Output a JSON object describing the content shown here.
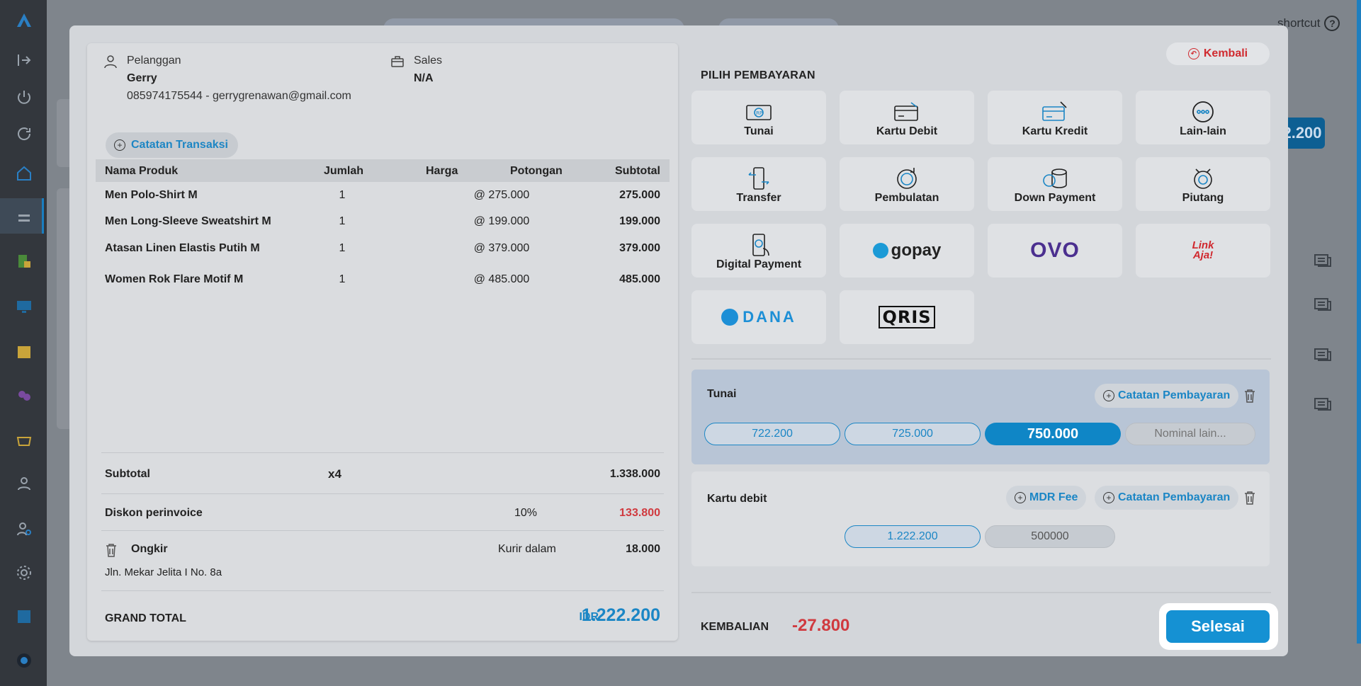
{
  "background": {
    "shortcut_label": "shortcut",
    "total_peek": "2.200"
  },
  "customer": {
    "label": "Pelanggan",
    "name": "Gerry",
    "contact": "085974175544 - gerrygrenawan@gmail.com"
  },
  "sales": {
    "label": "Sales",
    "value": "N/A"
  },
  "catatan_transaksi_label": "Catatan Transaksi",
  "table": {
    "headers": [
      "Nama Produk",
      "Jumlah",
      "Harga",
      "Potongan",
      "Subtotal"
    ],
    "rows": [
      {
        "name": "Men Polo-Shirt M",
        "qty": "1",
        "price": "@ 275.000",
        "discount": "",
        "subtotal": "275.000"
      },
      {
        "name": "Men Long-Sleeve Sweatshirt M",
        "qty": "1",
        "price": "@ 199.000",
        "discount": "",
        "subtotal": "199.000"
      },
      {
        "name": "Atasan Linen Elastis Putih M",
        "qty": "1",
        "price": "@ 379.000",
        "discount": "",
        "subtotal": "379.000"
      },
      {
        "name": "Women Rok Flare Motif M",
        "qty": "1",
        "price": "@ 485.000",
        "discount": "",
        "subtotal": "485.000"
      }
    ]
  },
  "summary": {
    "subtotal_label": "Subtotal",
    "subtotal_qty": "x4",
    "subtotal_value": "1.338.000",
    "discount_label": "Diskon perinvoice",
    "discount_pct": "10%",
    "discount_value": "133.800",
    "shipping_label": "Ongkir",
    "shipping_courier": "Kurir dalam",
    "shipping_value": "18.000",
    "shipping_address": "Jln. Mekar Jelita I No. 8a",
    "grand_total_label": "GRAND TOTAL",
    "grand_total_currency": "IDR",
    "grand_total_value": "1.222.200"
  },
  "kembali_label": "Kembali",
  "payment_title": "PILIH PEMBAYARAN",
  "payment_methods": [
    {
      "label": "Tunai",
      "icon": "cash-icon"
    },
    {
      "label": "Kartu Debit",
      "icon": "debit-card-icon"
    },
    {
      "label": "Kartu Kredit",
      "icon": "credit-card-icon"
    },
    {
      "label": "Lain-lain",
      "icon": "more-icon"
    },
    {
      "label": "Transfer",
      "icon": "transfer-icon"
    },
    {
      "label": "Pembulatan",
      "icon": "rounding-icon"
    },
    {
      "label": "Down Payment",
      "icon": "coins-icon"
    },
    {
      "label": "Piutang",
      "icon": "receivable-icon"
    },
    {
      "label": "Digital Payment",
      "icon": "phone-payment-icon"
    },
    {
      "label": "gopay",
      "icon": "gopay-logo"
    },
    {
      "label": "OVO",
      "icon": "ovo-logo"
    },
    {
      "label": "LinkAja!",
      "icon": "linkaja-logo"
    },
    {
      "label": "DANA",
      "icon": "dana-logo"
    },
    {
      "label": "QRIS",
      "icon": "qris-logo"
    }
  ],
  "tunai_card": {
    "title": "Tunai",
    "note_label": "Catatan Pembayaran",
    "amounts": [
      "722.200",
      "725.000",
      "750.000"
    ],
    "other_placeholder": "Nominal lain..."
  },
  "debit_card": {
    "title": "Kartu debit",
    "mdr_label": "MDR Fee",
    "note_label": "Catatan Pembayaran",
    "amount": "1.222.200",
    "input_value": "500000"
  },
  "kembalian": {
    "label": "KEMBALIAN",
    "value": "-27.800"
  },
  "selesai_label": "Selesai",
  "colors": {
    "accent": "#1b86c5",
    "negative": "#d03a3f",
    "primary_button": "#1591d3"
  }
}
